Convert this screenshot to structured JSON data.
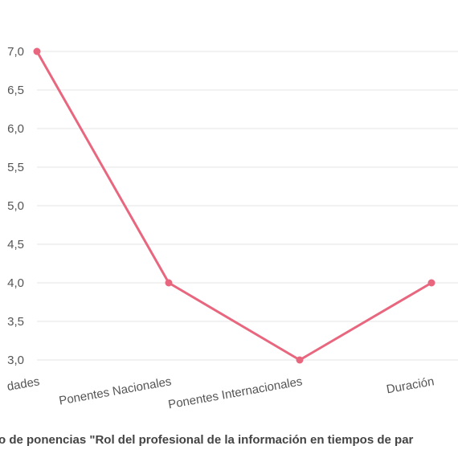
{
  "chart_data": {
    "type": "line",
    "title": "o de ponencias \"Rol del profesional de la información en tiempos de par",
    "categories": [
      "dades",
      "Ponentes Nacionales",
      "Ponentes Internacionales",
      "Duración"
    ],
    "series": [
      {
        "values": [
          7.0,
          4.0,
          3.0,
          4.0
        ]
      }
    ],
    "ylim": [
      3.0,
      7.0
    ],
    "yticks": [
      "3,0",
      "3,5",
      "4,0",
      "4,5",
      "5,0",
      "5,5",
      "6,0",
      "6,5",
      "7,0"
    ],
    "ytick_values": [
      3.0,
      3.5,
      4.0,
      4.5,
      5.0,
      5.5,
      6.0,
      6.5,
      7.0
    ],
    "grid": true,
    "line_color": "#e8677f",
    "legend": "none"
  }
}
